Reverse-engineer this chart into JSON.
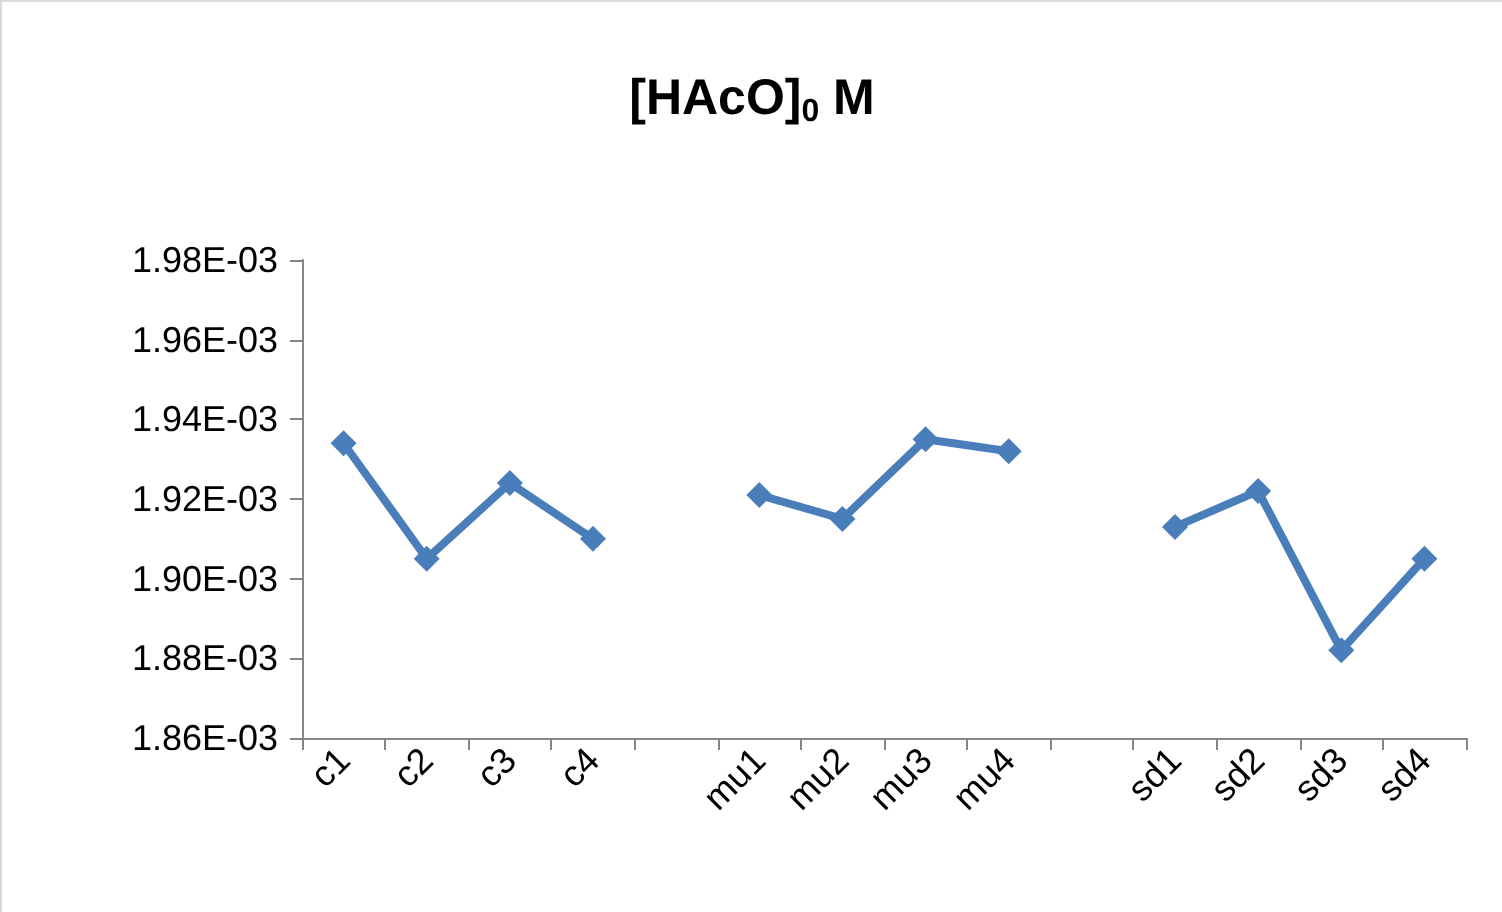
{
  "chart_data": {
    "type": "line",
    "title": "[HAcO]$_{0}$ M",
    "categories": [
      "c1",
      "c2",
      "c3",
      "c4",
      null,
      "mu1",
      "mu2",
      "mu3",
      "mu4",
      null,
      "sd1",
      "sd2",
      "sd3",
      "sd4"
    ],
    "series": [
      {
        "color": "#4a7ebb",
        "values": [
          0.001934,
          0.001905,
          0.001924,
          0.00191,
          null,
          0.001921,
          0.001915,
          0.001935,
          0.001932,
          null,
          0.001913,
          0.001922,
          0.001882,
          0.001905
        ]
      }
    ],
    "ylim": [
      0.00186,
      0.00198
    ],
    "yticks": [
      {
        "value": 0.00186,
        "label": "1.86E-03"
      },
      {
        "value": 0.00188,
        "label": "1.88E-03"
      },
      {
        "value": 0.0019,
        "label": "1.90E-03"
      },
      {
        "value": 0.00192,
        "label": "1.92E-03"
      },
      {
        "value": 0.00194,
        "label": "1.94E-03"
      },
      {
        "value": 0.00196,
        "label": "1.96E-03"
      },
      {
        "value": 0.00198,
        "label": "1.98E-03"
      }
    ],
    "grid": false,
    "marker": "diamond",
    "line_style": "solid"
  }
}
